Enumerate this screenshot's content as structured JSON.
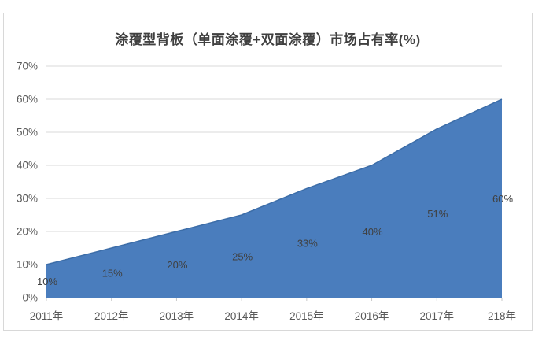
{
  "chart_data": {
    "type": "area",
    "title": "涂覆型背板（单面涂覆+双面涂覆）市场占有率(%)",
    "categories": [
      "2011年",
      "2012年",
      "2013年",
      "2014年",
      "2015年",
      "2016年",
      "2017年",
      "218年"
    ],
    "values": [
      10,
      15,
      20,
      25,
      33,
      40,
      51,
      60
    ],
    "data_labels": [
      "10%",
      "15%",
      "20%",
      "25%",
      "33%",
      "40%",
      "51%",
      "60%"
    ],
    "y_tick_labels": [
      "0%",
      "10%",
      "20%",
      "30%",
      "40%",
      "50%",
      "60%",
      "70%"
    ],
    "y_tick_values": [
      0,
      10,
      20,
      30,
      40,
      50,
      60,
      70
    ],
    "ylim": [
      0,
      70
    ],
    "xlabel": "",
    "ylabel": "",
    "grid": "horizontal",
    "legend": "none",
    "data_label_placement": "center-of-band",
    "colors": {
      "area_fill": "#4a7dbd",
      "area_outline": "#3c6da8",
      "gridline": "#d9d9d9",
      "axis_line": "#c9c9c9",
      "axis_text": "#595959",
      "data_label_text": "#404040",
      "title_text": "#404040",
      "frame_border": "#d8d8d8",
      "background": "#ffffff"
    }
  }
}
